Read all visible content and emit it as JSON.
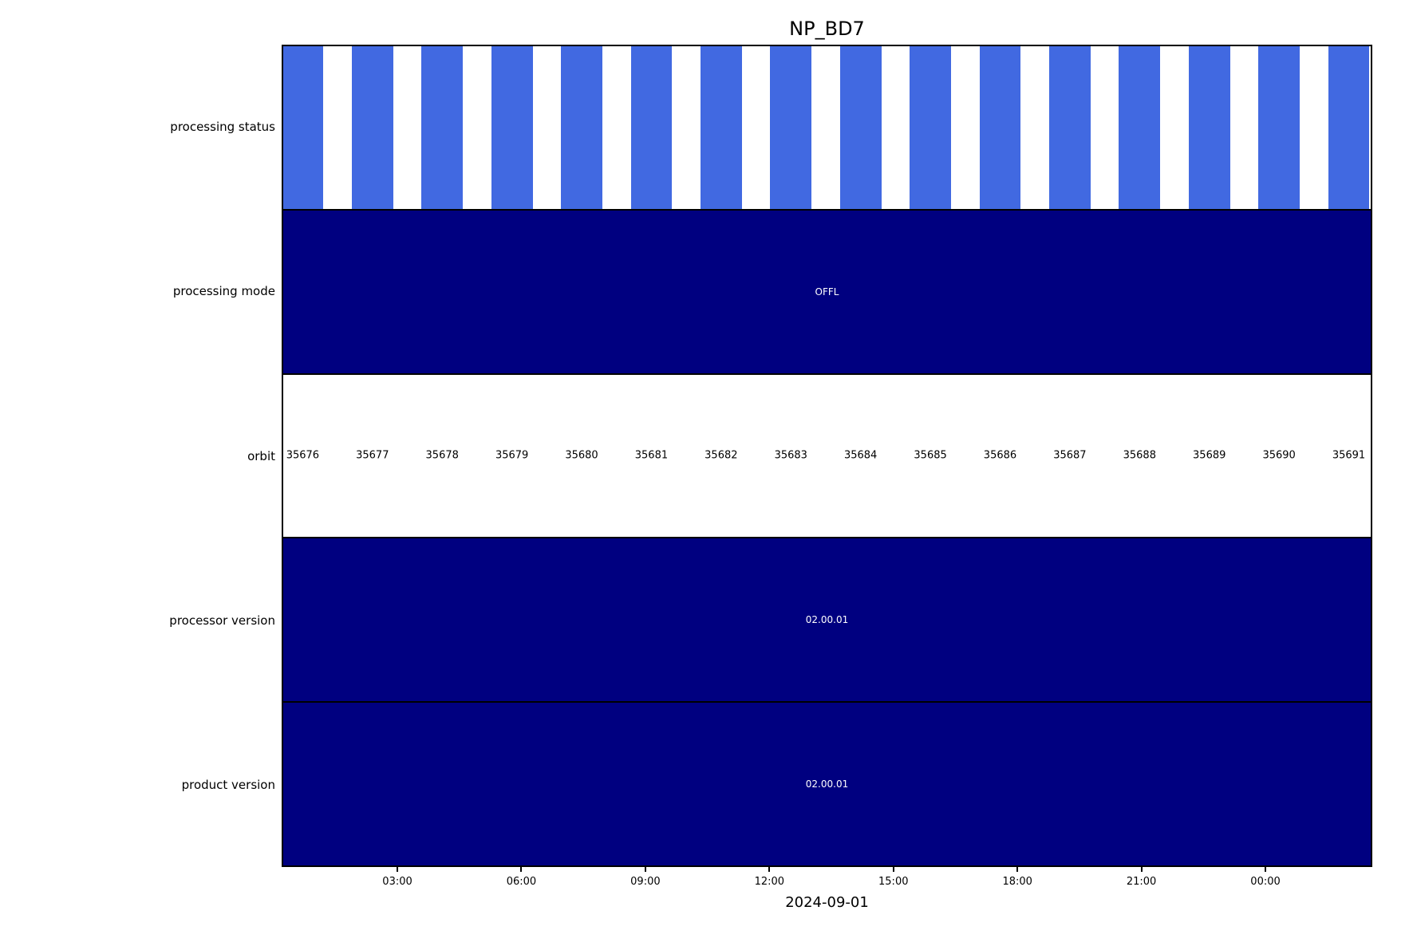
{
  "chart_data": {
    "type": "timeline",
    "title": "NP_BD7",
    "xlabel": "2024-09-01",
    "x_axis": {
      "tick_labels": [
        "03:00",
        "06:00",
        "09:00",
        "12:00",
        "15:00",
        "18:00",
        "21:00",
        "00:00"
      ],
      "first_tick_frac": 0.1061,
      "tick_step_frac": 0.1137
    },
    "orbit_geometry": {
      "first_center_frac": 0.0179,
      "center_step_frac": 0.06413,
      "bar_width_frac": 0.038
    },
    "rows": [
      {
        "label": "processing status",
        "kind": "orbit_bars",
        "background": "#ffffff",
        "bar_color": "#4169e1",
        "bar_count": 16
      },
      {
        "label": "processing mode",
        "kind": "solid",
        "color": "#000080",
        "value": "OFFL",
        "value_color": "#ffffff"
      },
      {
        "label": "orbit",
        "kind": "orbit_labels",
        "background": "#ffffff",
        "values": [
          "35676",
          "35677",
          "35678",
          "35679",
          "35680",
          "35681",
          "35682",
          "35683",
          "35684",
          "35685",
          "35686",
          "35687",
          "35688",
          "35689",
          "35690",
          "35691"
        ],
        "value_color": "#000000"
      },
      {
        "label": "processor version",
        "kind": "solid",
        "color": "#000080",
        "value": "02.00.01",
        "value_color": "#ffffff"
      },
      {
        "label": "product version",
        "kind": "solid",
        "color": "#000080",
        "value": "02.00.01",
        "value_color": "#ffffff"
      }
    ],
    "colors": {
      "frame": "#000000",
      "stripe_blue": "#4169e1",
      "navy": "#000080",
      "background": "#ffffff"
    }
  }
}
